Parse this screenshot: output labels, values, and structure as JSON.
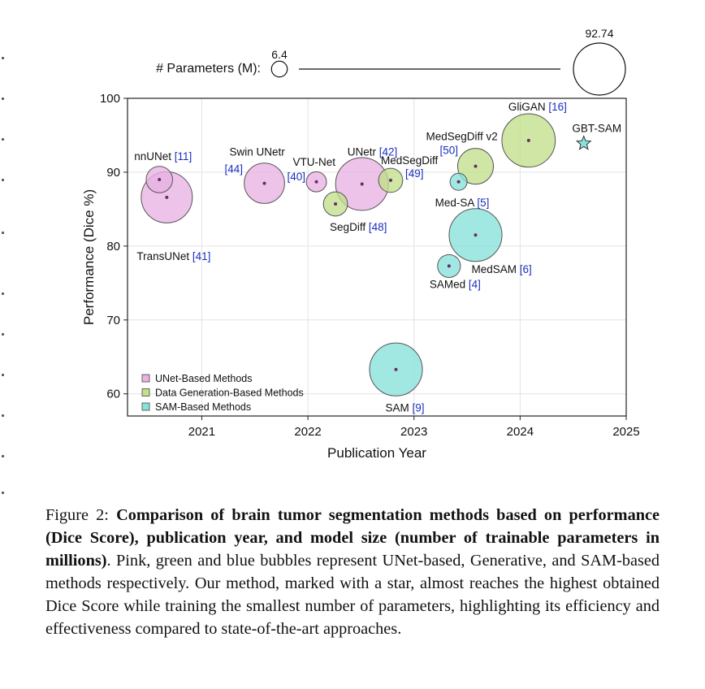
{
  "chart_data": {
    "type": "scatter",
    "xlabel": "Publication Year",
    "ylabel": "Performance (Dice %)",
    "xlim": [
      2020.3,
      2025
    ],
    "ylim": [
      57,
      100
    ],
    "xticks": [
      "2021",
      "2022",
      "2023",
      "2024",
      "2025"
    ],
    "yticks": [
      "60",
      "70",
      "80",
      "90",
      "100"
    ],
    "grid": true,
    "size_legend": {
      "label": "# Parameters (M):",
      "min_label": "6.4",
      "max_label": "92.74",
      "min_value": 6.4,
      "max_value": 92.74
    },
    "legend_position": "bottom-left",
    "groups": [
      {
        "name": "UNet-Based Methods",
        "color": "#e8b2e3"
      },
      {
        "name": "Data Generation-Based Methods",
        "color": "#c2df8a"
      },
      {
        "name": "SAM-Based Methods",
        "color": "#87e2da"
      }
    ],
    "points": [
      {
        "name": "nnUNet",
        "ref": "[11]",
        "group": 0,
        "x": 2020.6,
        "y": 89.0,
        "params": 12
      },
      {
        "name": "TransUNet",
        "ref": "[41]",
        "group": 0,
        "x": 2020.67,
        "y": 86.6,
        "params": 45
      },
      {
        "name": "Swin UNetr",
        "ref": "[44]",
        "group": 0,
        "x": 2021.59,
        "y": 88.5,
        "params": 28
      },
      {
        "name": "VTU-Net",
        "ref": "[40]",
        "group": 0,
        "x": 2022.08,
        "y": 88.7,
        "params": 7
      },
      {
        "name": "UNetr",
        "ref": "[42]",
        "group": 0,
        "x": 2022.51,
        "y": 88.4,
        "params": 48
      },
      {
        "name": "SegDiff",
        "ref": "[48]",
        "group": 1,
        "x": 2022.26,
        "y": 85.7,
        "params": 10
      },
      {
        "name": "MedSegDiff",
        "ref": "[49]",
        "group": 1,
        "x": 2022.78,
        "y": 88.9,
        "params": 10
      },
      {
        "name": "MedSegDiff v2",
        "ref": "[50]",
        "group": 1,
        "x": 2023.58,
        "y": 90.8,
        "params": 22
      },
      {
        "name": "GliGAN",
        "ref": "[16]",
        "group": 1,
        "x": 2024.08,
        "y": 94.3,
        "params": 49
      },
      {
        "name": "Med-SA",
        "ref": "[5]",
        "group": 2,
        "x": 2023.42,
        "y": 88.7,
        "params": 5
      },
      {
        "name": "MedSAM",
        "ref": "[6]",
        "group": 2,
        "x": 2023.58,
        "y": 81.5,
        "params": 48
      },
      {
        "name": "SAMed",
        "ref": "[4]",
        "group": 2,
        "x": 2023.33,
        "y": 77.3,
        "params": 9
      },
      {
        "name": "SAM",
        "ref": "[9]",
        "group": 2,
        "x": 2022.83,
        "y": 63.3,
        "params": 48
      }
    ],
    "highlight": {
      "name": "GBT-SAM",
      "x": 2024.6,
      "y": 93.9,
      "marker": "star",
      "color": "#87e2da"
    }
  },
  "caption": {
    "prefix": "Figure 2: ",
    "bold": "Comparison of brain tumor segmentation methods based on performance (Dice Score), publication year, and model size (number of trainable parameters in millions)",
    "rest": ". Pink, green and blue bubbles represent UNet-based, Generative, and SAM-based methods respectively. Our method, marked with a star, almost reaches the highest obtained Dice Score while training the smallest number of parameters, highlighting its efficiency and effectiveness compared to state-of-the-art approaches."
  }
}
